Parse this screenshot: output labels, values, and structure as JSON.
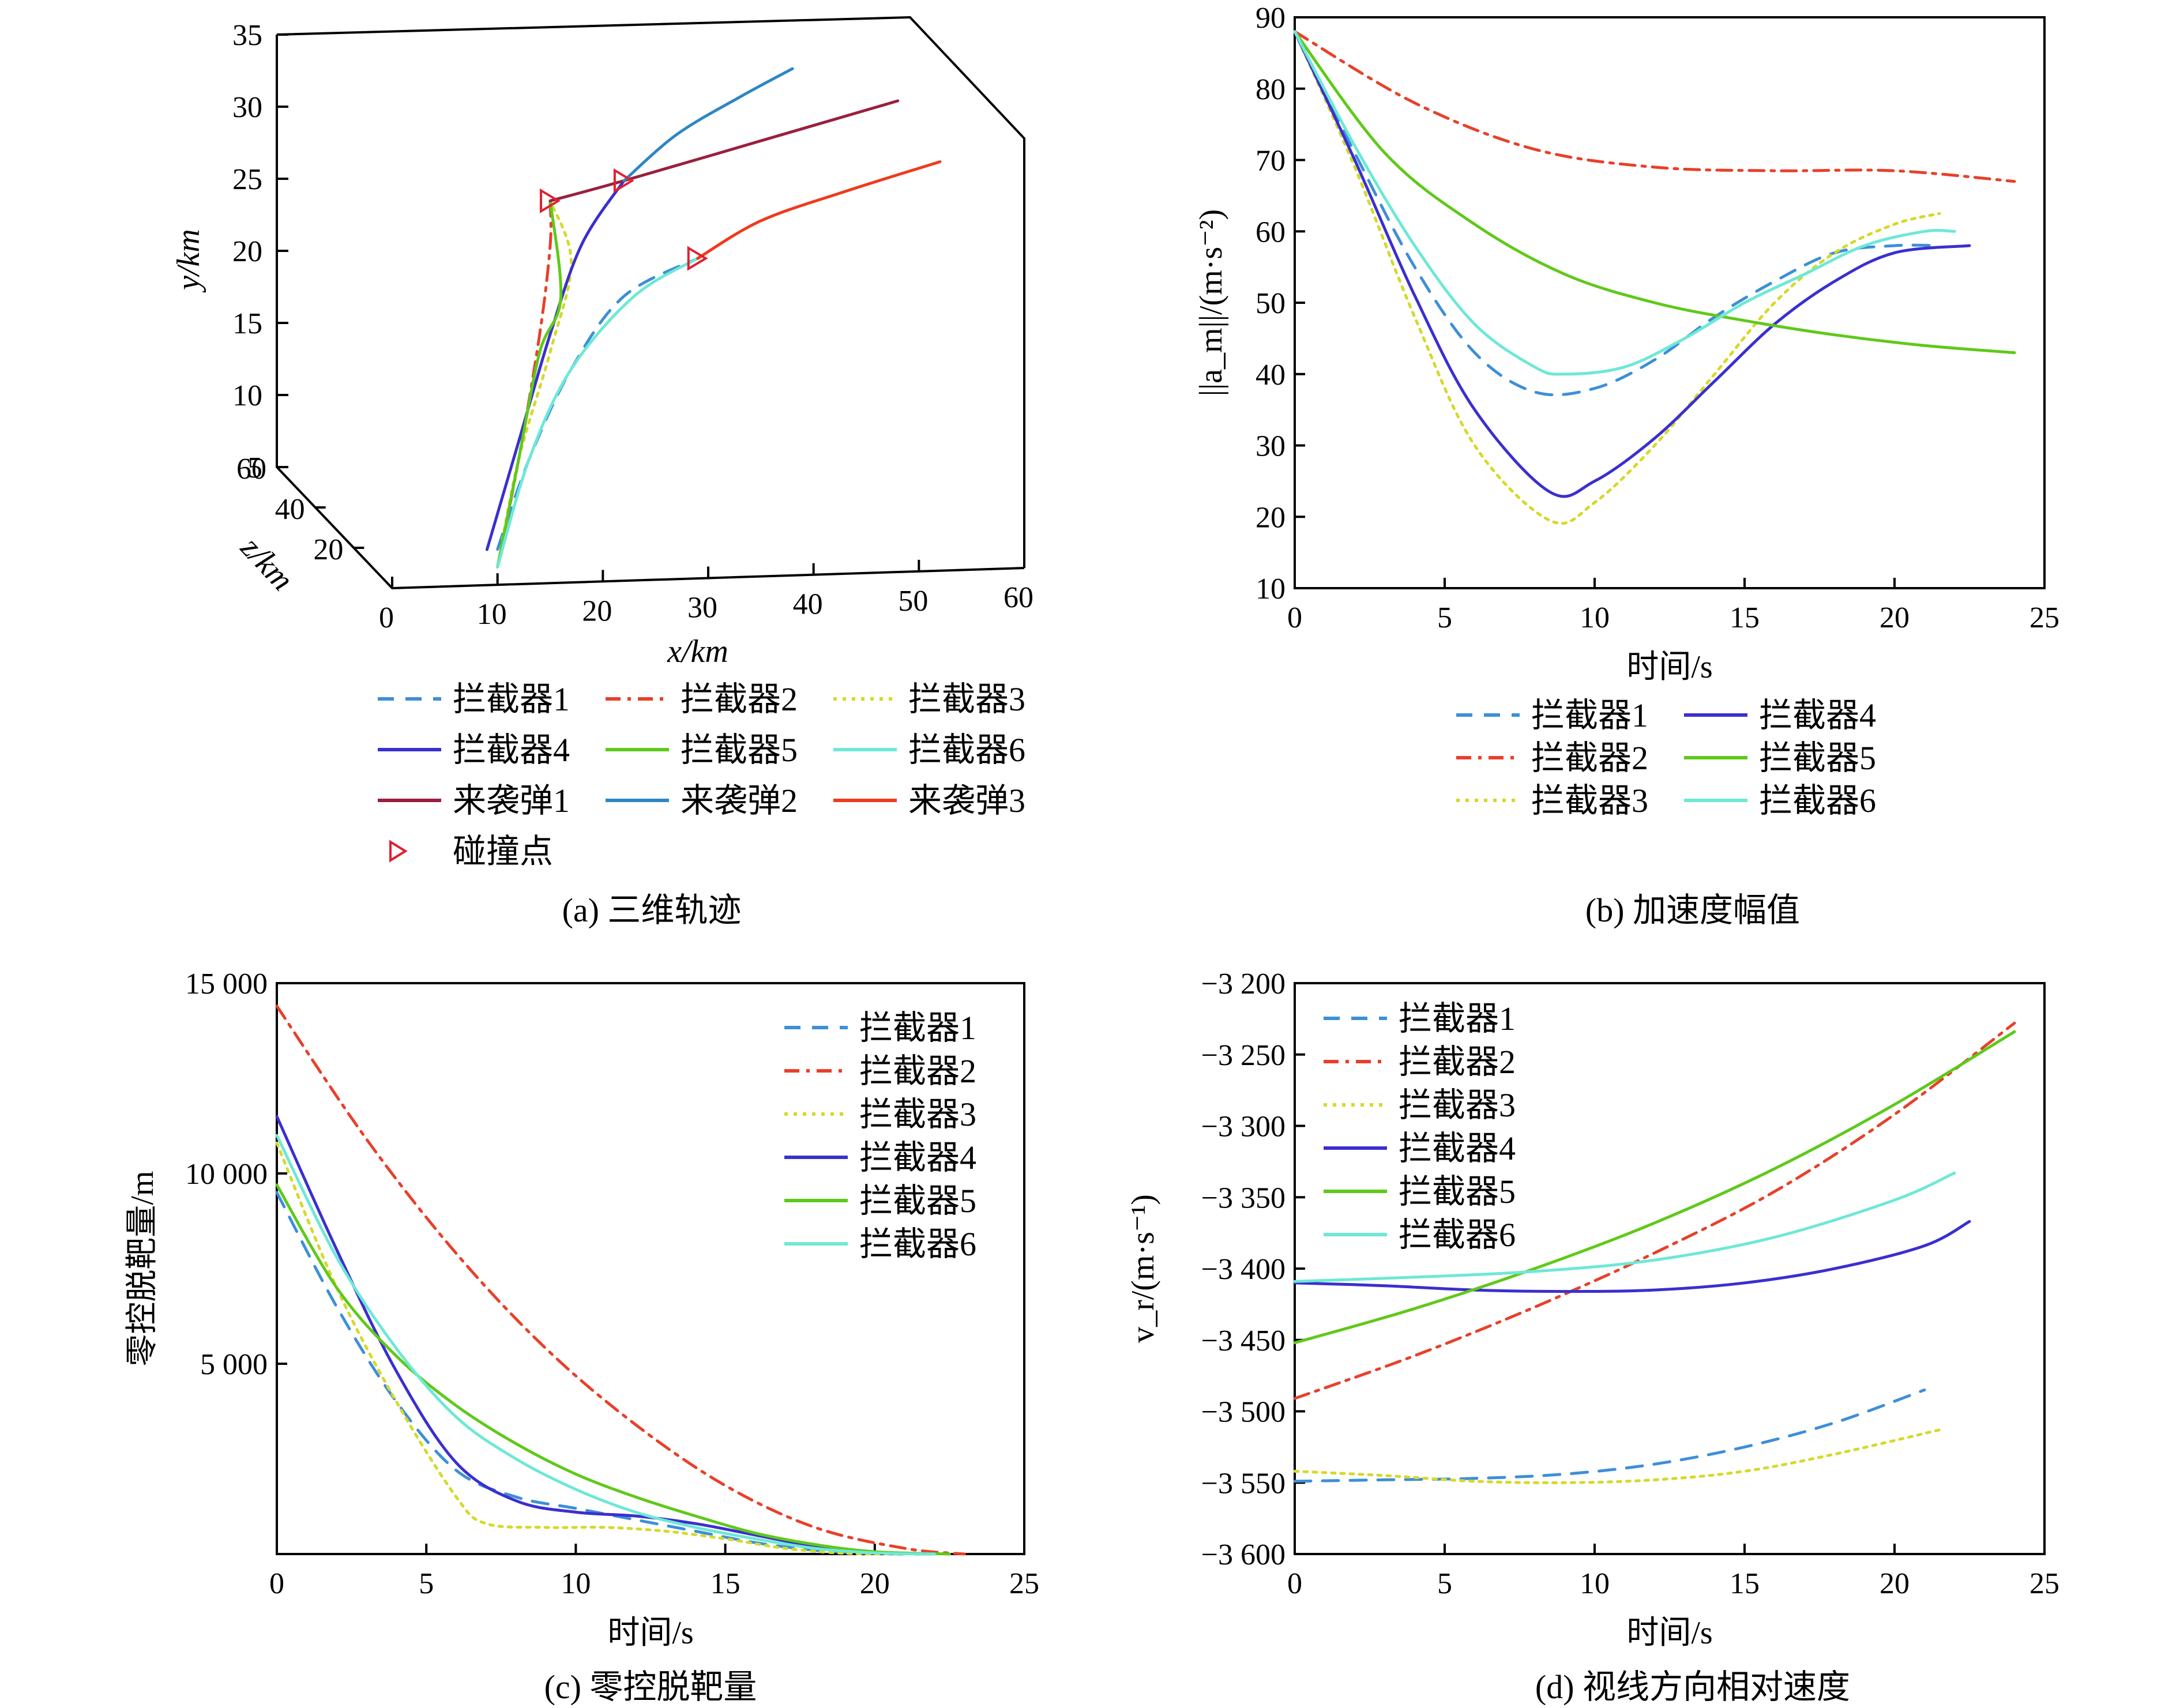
{
  "colors": {
    "interceptor1": "#3d8fd8",
    "interceptor2": "#e8402a",
    "interceptor3": "#d6d92a",
    "interceptor4": "#3a2fcf",
    "interceptor5": "#5fc91a",
    "interceptor6": "#6ee8d6",
    "missile1": "#9b1f3d",
    "missile2": "#2d86c4",
    "missile3": "#ef3b1d",
    "collision": "#e02030"
  },
  "legend_labels": [
    "拦截器1",
    "拦截器2",
    "拦截器3",
    "拦截器4",
    "拦截器5",
    "拦截器6",
    "来袭弹1",
    "来袭弹2",
    "来袭弹3",
    "碰撞点"
  ],
  "chart_data": [
    {
      "id": "a",
      "type": "line",
      "projection": "3d",
      "caption": "(a) 三维轨迹",
      "xlabel": "x/km",
      "ylabel": "y/km",
      "zlabel": "z/km",
      "xlim": [
        0,
        60
      ],
      "ylim": [
        5,
        35
      ],
      "zlim": [
        0,
        60
      ],
      "xticks": [
        "0",
        "10",
        "20",
        "30",
        "40",
        "50",
        "60"
      ],
      "yticks": [
        "5",
        "10",
        "15",
        "20",
        "25",
        "30",
        "35"
      ],
      "zticks": [
        "20",
        "40",
        "60"
      ],
      "legend": {
        "columns": 3,
        "placement": "below"
      },
      "series": [
        {
          "name": "拦截器1",
          "style": "dash",
          "color": "interceptor1",
          "points": [
            [
              10,
              7,
              0
            ],
            [
              13,
              12,
              0
            ],
            [
              17,
              17,
              0
            ],
            [
              22,
              21,
              0
            ],
            [
              29,
              23,
              0
            ]
          ]
        },
        {
          "name": "拦截器2",
          "style": "dashdot",
          "color": "interceptor2",
          "points": [
            [
              10,
              6,
              0
            ],
            [
              12,
              12,
              0
            ],
            [
              14,
              19,
              0
            ],
            [
              15,
              24,
              0
            ],
            [
              15,
              26.5,
              0
            ]
          ]
        },
        {
          "name": "拦截器3",
          "style": "dot",
          "color": "interceptor3",
          "points": [
            [
              10,
              6,
              0
            ],
            [
              12,
              12,
              0
            ],
            [
              15,
              18,
              0
            ],
            [
              17,
              23,
              0
            ],
            [
              15,
              26.5,
              0
            ]
          ]
        },
        {
          "name": "拦截器4",
          "style": "solid",
          "color": "interceptor4",
          "points": [
            [
              9,
              7,
              0
            ],
            [
              12,
              13,
              0
            ],
            [
              15,
              19,
              0
            ],
            [
              18,
              24,
              0
            ],
            [
              22,
              27.5,
              0
            ]
          ]
        },
        {
          "name": "拦截器5",
          "style": "solid",
          "color": "interceptor5",
          "points": [
            [
              10,
              6,
              0
            ],
            [
              12,
              12,
              0
            ],
            [
              14,
              18,
              0
            ],
            [
              16,
              21,
              0
            ],
            [
              15,
              26.5,
              0
            ]
          ]
        },
        {
          "name": "拦截器6",
          "style": "solid",
          "color": "interceptor6",
          "points": [
            [
              10,
              6,
              0
            ],
            [
              13,
              12,
              0
            ],
            [
              17,
              17,
              0
            ],
            [
              23,
              21,
              0
            ],
            [
              29,
              23,
              0
            ]
          ]
        },
        {
          "name": "来袭弹1",
          "style": "solid",
          "color": "missile1",
          "points": [
            [
              15,
              26.5,
              0
            ],
            [
              22,
              27.5,
              0
            ],
            [
              35,
              29.5,
              0
            ],
            [
              48,
              31.5,
              0
            ]
          ]
        },
        {
          "name": "来袭弹2",
          "style": "solid",
          "color": "missile2",
          "points": [
            [
              22,
              27.5,
              0
            ],
            [
              27,
              30,
              0
            ],
            [
              33,
              32,
              0
            ],
            [
              38,
              33.5,
              0
            ]
          ]
        },
        {
          "name": "来袭弹3",
          "style": "solid",
          "color": "missile3",
          "points": [
            [
              29,
              23,
              0
            ],
            [
              35,
              25,
              0
            ],
            [
              43,
              26.5,
              0
            ],
            [
              52,
              28,
              0
            ]
          ]
        },
        {
          "name": "碰撞点",
          "style": "marker",
          "color": "collision",
          "points": [
            [
              15,
              26.5,
              0
            ],
            [
              22,
              27.5,
              0
            ],
            [
              29,
              23,
              0
            ]
          ]
        }
      ]
    },
    {
      "id": "b",
      "type": "line",
      "caption": "(b) 加速度幅值",
      "xlabel": "时间/s",
      "ylabel": "||a_m||/(m·s⁻²)",
      "xlim": [
        0,
        25
      ],
      "ylim": [
        10,
        90
      ],
      "xticks": [
        "0",
        "5",
        "10",
        "15",
        "20",
        "25"
      ],
      "yticks": [
        "10",
        "20",
        "30",
        "40",
        "50",
        "60",
        "70",
        "80",
        "90"
      ],
      "legend": {
        "columns": 2,
        "placement": "below"
      },
      "series": [
        {
          "name": "拦截器1",
          "style": "dash",
          "color": "interceptor1",
          "x": [
            0,
            2,
            4,
            6,
            8,
            10,
            12,
            14,
            16,
            18,
            20,
            21.5
          ],
          "y": [
            88,
            71,
            55,
            43,
            37.5,
            38,
            42,
            48,
            53,
            57,
            58,
            58
          ]
        },
        {
          "name": "拦截器2",
          "style": "dashdot",
          "color": "interceptor2",
          "x": [
            0,
            4,
            8,
            12,
            16,
            20,
            24
          ],
          "y": [
            88,
            78,
            71.5,
            69,
            68.5,
            68.5,
            67
          ]
        },
        {
          "name": "拦截器3",
          "style": "dot",
          "color": "interceptor3",
          "x": [
            0,
            2,
            4,
            6,
            8.5,
            10,
            12,
            14,
            16,
            18,
            20,
            21.5
          ],
          "y": [
            88,
            69,
            48,
            30,
            19.5,
            22,
            30,
            40,
            50,
            57,
            61,
            62.5
          ]
        },
        {
          "name": "拦截器4",
          "style": "solid",
          "color": "interceptor4",
          "x": [
            0,
            2,
            4,
            6,
            8.5,
            10,
            12,
            14,
            16,
            18,
            20,
            22.5
          ],
          "y": [
            88,
            70,
            51,
            35,
            23.5,
            25,
            31,
            39,
            47,
            53,
            57,
            58
          ]
        },
        {
          "name": "拦截器5",
          "style": "solid",
          "color": "interceptor5",
          "x": [
            0,
            3,
            6,
            9,
            12,
            15,
            18,
            21,
            24
          ],
          "y": [
            88,
            71,
            61,
            54,
            50,
            47.5,
            45.5,
            44,
            43
          ]
        },
        {
          "name": "拦截器6",
          "style": "solid",
          "color": "interceptor6",
          "x": [
            0,
            2,
            4,
            6,
            8,
            9,
            11,
            13,
            15,
            17,
            19,
            21,
            22
          ],
          "y": [
            88,
            72,
            58,
            47,
            41,
            40,
            41,
            45,
            50,
            54,
            58,
            60,
            60
          ]
        }
      ]
    },
    {
      "id": "c",
      "type": "line",
      "caption": "(c) 零控脱靶量",
      "xlabel": "时间/s",
      "ylabel": "零控脱靶量/m",
      "xlim": [
        0,
        25
      ],
      "ylim": [
        0,
        15000
      ],
      "xticks": [
        "0",
        "5",
        "10",
        "15",
        "20",
        "25"
      ],
      "yticks": [
        "5 000",
        "10 000",
        "15 000"
      ],
      "ytick_values": [
        5000,
        10000,
        15000
      ],
      "legend": {
        "columns": 1,
        "placement": "top-right"
      },
      "series": [
        {
          "name": "拦截器1",
          "style": "dash",
          "color": "interceptor1",
          "x": [
            0,
            2,
            4,
            6,
            8,
            10,
            12,
            14,
            16,
            18,
            20,
            21.5
          ],
          "y": [
            9500,
            6500,
            4000,
            2200,
            1500,
            1200,
            900,
            600,
            300,
            100,
            10,
            0
          ]
        },
        {
          "name": "拦截器2",
          "style": "dashdot",
          "color": "interceptor2",
          "x": [
            0,
            3,
            6,
            9,
            12,
            15,
            18,
            21,
            23
          ],
          "y": [
            14400,
            10900,
            7900,
            5400,
            3400,
            1800,
            700,
            150,
            0
          ]
        },
        {
          "name": "拦截器3",
          "style": "dot",
          "color": "interceptor3",
          "x": [
            0,
            2,
            4,
            6,
            7,
            9,
            11,
            13,
            15,
            17,
            19,
            21
          ],
          "y": [
            10800,
            7000,
            4000,
            1500,
            800,
            700,
            700,
            600,
            400,
            150,
            20,
            0
          ]
        },
        {
          "name": "拦截器4",
          "style": "solid",
          "color": "interceptor4",
          "x": [
            0,
            2,
            4,
            6,
            8,
            10,
            12,
            14,
            16,
            18,
            20,
            22
          ],
          "y": [
            11500,
            8000,
            4800,
            2400,
            1400,
            1100,
            1000,
            800,
            500,
            200,
            40,
            0
          ]
        },
        {
          "name": "拦截器5",
          "style": "solid",
          "color": "interceptor5",
          "x": [
            0,
            2,
            4,
            6,
            8,
            10,
            12,
            14,
            16,
            18,
            20,
            22.5
          ],
          "y": [
            9700,
            7000,
            5200,
            3900,
            2900,
            2100,
            1500,
            1000,
            550,
            250,
            60,
            0
          ]
        },
        {
          "name": "拦截器6",
          "style": "solid",
          "color": "interceptor6",
          "x": [
            0,
            2,
            4,
            6,
            8,
            10,
            12,
            14,
            16,
            18,
            20,
            22
          ],
          "y": [
            11000,
            7800,
            5400,
            3600,
            2500,
            1700,
            1100,
            700,
            400,
            150,
            30,
            0
          ]
        }
      ]
    },
    {
      "id": "d",
      "type": "line",
      "caption": "(d) 视线方向相对速度",
      "xlabel": "时间/s",
      "ylabel": "v_r/(m·s⁻¹)",
      "xlim": [
        0,
        25
      ],
      "ylim": [
        -3600,
        -3200
      ],
      "xticks": [
        "0",
        "5",
        "10",
        "15",
        "20",
        "25"
      ],
      "yticks": [
        "−3 600",
        "−3 550",
        "−3 500",
        "−3 450",
        "−3 400",
        "−3 350",
        "−3 300",
        "−3 250",
        "−3 200"
      ],
      "ytick_values": [
        -3600,
        -3550,
        -3500,
        -3450,
        -3400,
        -3350,
        -3300,
        -3250,
        -3200
      ],
      "legend": {
        "columns": 1,
        "placement": "top-left"
      },
      "series": [
        {
          "name": "拦截器1",
          "style": "dash",
          "color": "interceptor1",
          "x": [
            0,
            3,
            6,
            9,
            12,
            15,
            18,
            21
          ],
          "y": [
            -3549,
            -3548,
            -3547,
            -3544,
            -3537,
            -3525,
            -3508,
            -3485
          ]
        },
        {
          "name": "拦截器2",
          "style": "dashdot",
          "color": "interceptor2",
          "x": [
            0,
            4,
            8,
            12,
            16,
            20,
            24
          ],
          "y": [
            -3491,
            -3461,
            -3427,
            -3389,
            -3346,
            -3292,
            -3228
          ]
        },
        {
          "name": "拦截器3",
          "style": "dot",
          "color": "interceptor3",
          "x": [
            0,
            3,
            6,
            9,
            12,
            15,
            18,
            21.5
          ],
          "y": [
            -3542,
            -3545,
            -3549,
            -3550,
            -3548,
            -3542,
            -3530,
            -3513
          ]
        },
        {
          "name": "拦截器4",
          "style": "solid",
          "color": "interceptor4",
          "x": [
            0,
            3,
            6,
            9,
            12,
            15,
            18,
            21,
            22.5
          ],
          "y": [
            -3410,
            -3412,
            -3415,
            -3416,
            -3415,
            -3410,
            -3400,
            -3384,
            -3367
          ]
        },
        {
          "name": "拦截器5",
          "style": "solid",
          "color": "interceptor5",
          "x": [
            0,
            4,
            8,
            12,
            16,
            20,
            24
          ],
          "y": [
            -3452,
            -3428,
            -3400,
            -3368,
            -3330,
            -3285,
            -3234
          ]
        },
        {
          "name": "拦截器6",
          "style": "solid",
          "color": "interceptor6",
          "x": [
            0,
            4,
            8,
            12,
            16,
            20,
            22
          ],
          "y": [
            -3409,
            -3406,
            -3402,
            -3394,
            -3378,
            -3352,
            -3333
          ]
        }
      ]
    }
  ]
}
